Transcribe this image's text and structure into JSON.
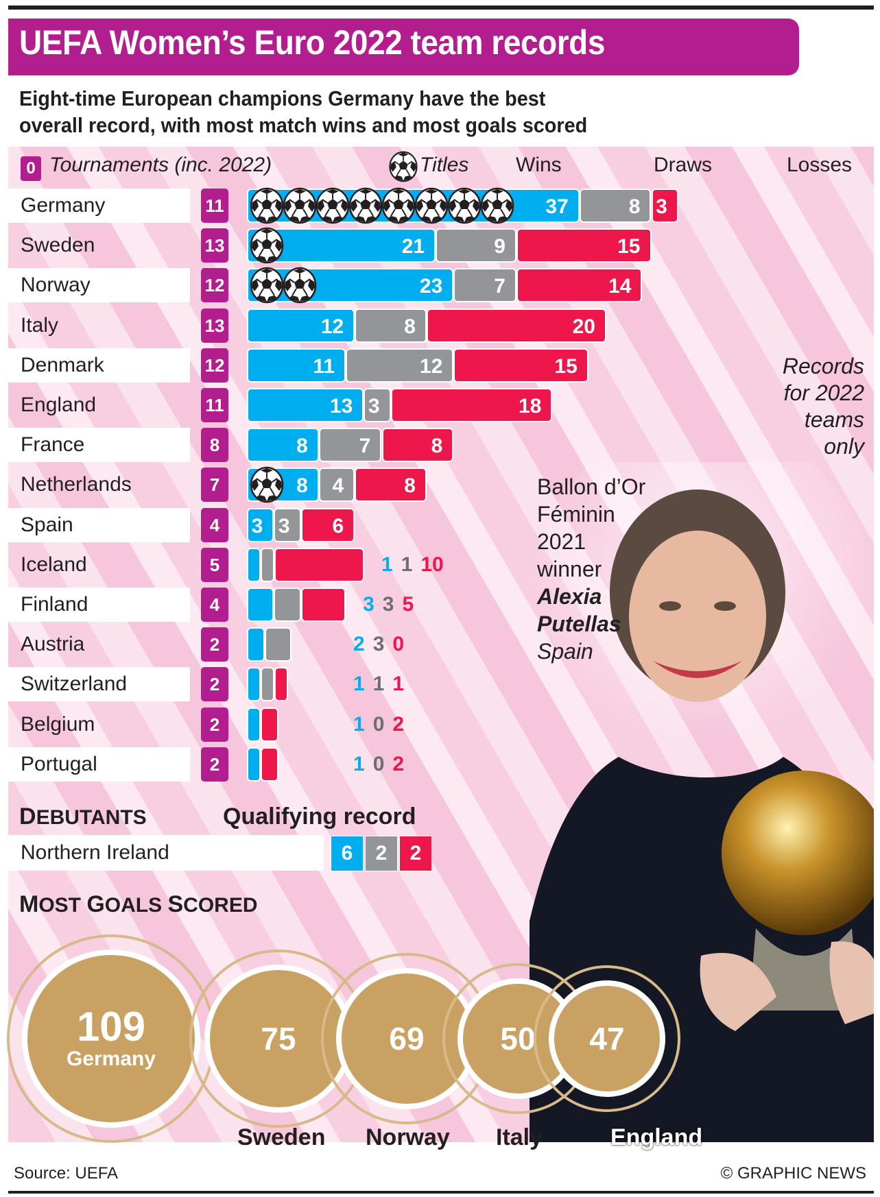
{
  "title": "UEFA Women’s Euro 2022 team records",
  "subtitle_line1": "Eight-time European champions Germany have the best",
  "subtitle_line2": "overall record, with most match wins and most goals scored",
  "legend": {
    "tournaments_sample": "0",
    "tournaments": "Tournaments (inc. 2022)",
    "titles": "Titles",
    "wins": "Wins",
    "draws": "Draws",
    "losses": "Losses"
  },
  "colors": {
    "wins": "#00aeef",
    "draws": "#939598",
    "losses": "#ed174b",
    "tournaments": "#b31e8f",
    "goals": "#c9a162"
  },
  "chart_data": [
    {
      "type": "bar",
      "title": "Team records (stacked wins/draws/losses)",
      "categories": [
        "Germany",
        "Sweden",
        "Norway",
        "Italy",
        "Denmark",
        "England",
        "France",
        "Netherlands",
        "Spain",
        "Iceland",
        "Finland",
        "Austria",
        "Switzerland",
        "Belgium",
        "Portugal"
      ],
      "tournaments": [
        11,
        13,
        12,
        13,
        12,
        11,
        8,
        7,
        4,
        5,
        4,
        2,
        2,
        2,
        2
      ],
      "titles": [
        8,
        1,
        2,
        0,
        0,
        0,
        0,
        1,
        0,
        0,
        0,
        0,
        0,
        0,
        0
      ],
      "series": [
        {
          "name": "Wins",
          "values": [
            37,
            21,
            23,
            12,
            11,
            13,
            8,
            8,
            3,
            1,
            3,
            2,
            1,
            1,
            1
          ]
        },
        {
          "name": "Draws",
          "values": [
            8,
            9,
            7,
            8,
            12,
            3,
            7,
            4,
            3,
            1,
            3,
            3,
            1,
            0,
            0
          ]
        },
        {
          "name": "Losses",
          "values": [
            3,
            15,
            14,
            20,
            15,
            18,
            8,
            8,
            6,
            10,
            5,
            0,
            1,
            2,
            2
          ]
        }
      ],
      "note": "Records for 2022 teams only"
    },
    {
      "type": "bar",
      "title": "Most Goals Scored",
      "categories": [
        "Germany",
        "Sweden",
        "Norway",
        "Italy",
        "England"
      ],
      "values": [
        109,
        75,
        69,
        50,
        47
      ]
    }
  ],
  "note_lines": [
    "Records",
    "for 2022",
    "teams",
    "only"
  ],
  "ballon": {
    "lines": [
      "Ballon d’Or",
      "Féminin",
      "2021",
      "winner"
    ],
    "name1": "Alexia",
    "name2": "Putellas",
    "country": "Spain"
  },
  "debutants": {
    "heading_first": "D",
    "heading_rest": "EBUTANTS",
    "qual_heading": "Qualifying record",
    "team": "Northern Ireland",
    "wins": "6",
    "draws": "2",
    "losses": "2"
  },
  "goals_heading": {
    "m": "M",
    "ost": "OST ",
    "g": "G",
    "oals": "OALS ",
    "s": "S",
    "cored": "CORED"
  },
  "footer": {
    "source": "Source: UEFA",
    "credit": "© GRAPHIC NEWS"
  }
}
